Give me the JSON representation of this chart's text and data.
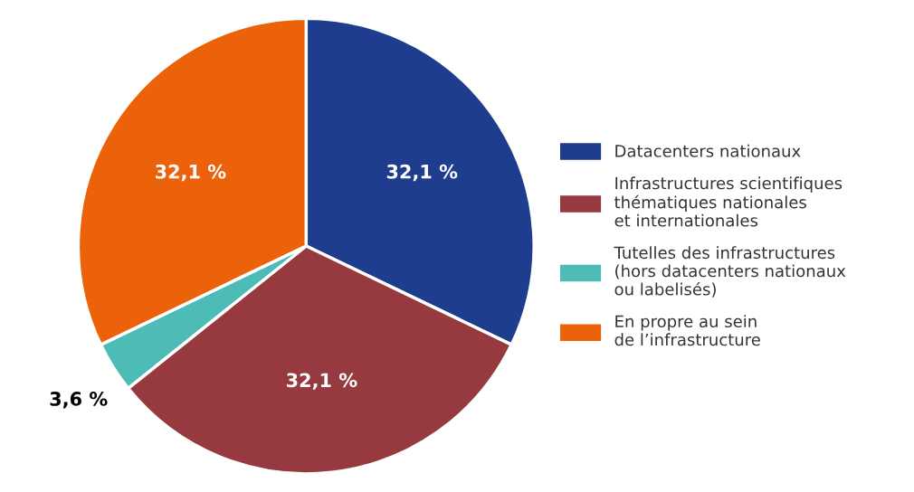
{
  "chart_data": {
    "type": "pie",
    "categories": [
      "Datacenters nationaux",
      "Infrastructures scientifiques\nthématiques nationales\net internationales",
      "Tutelles des infrastructures\n(hors datacenters nationaux\nou labelisés)",
      "En propre au sein\nde l’infrastructure"
    ],
    "values": [
      32.1,
      32.1,
      3.6,
      32.1
    ],
    "value_labels": [
      "32,1 %",
      "32,1 %",
      "3,6 %",
      "32,1 %"
    ],
    "colors": [
      "#1f3d8f",
      "#963a3f",
      "#4dbbb6",
      "#eb620b"
    ],
    "legend": "right"
  }
}
